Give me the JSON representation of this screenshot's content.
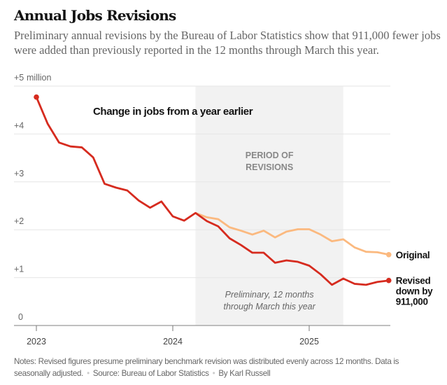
{
  "header": {
    "title": "Annual Jobs Revisions",
    "subtitle": "Preliminary annual revisions by the Bureau of Labor Statistics show that 911,000 fewer jobs were added than previously reported in the 12 months through March this year."
  },
  "chart_data": {
    "type": "line",
    "title": "Change in jobs from a year earlier",
    "ylabel": "million",
    "ylim": [
      0,
      5
    ],
    "y_ticks": [
      {
        "v": 5,
        "label": "+5"
      },
      {
        "v": 4,
        "label": "+4"
      },
      {
        "v": 3,
        "label": "+3"
      },
      {
        "v": 2,
        "label": "+2"
      },
      {
        "v": 1,
        "label": "+1"
      },
      {
        "v": 0,
        "label": "0"
      }
    ],
    "y_unit_label": "million",
    "x_ticks": [
      {
        "month_index": 0,
        "label": "2023"
      },
      {
        "month_index": 12,
        "label": "2024"
      },
      {
        "month_index": 24,
        "label": "2025"
      }
    ],
    "x_start": "2023-01",
    "x_end": "2025-08",
    "grid": true,
    "shaded_region": {
      "from_month_index": 14,
      "to_month_index": 27,
      "label_top": [
        "PERIOD OF",
        "REVISIONS"
      ],
      "label_bottom": [
        "Preliminary, 12 months",
        "through March this year"
      ]
    },
    "series": [
      {
        "name": "Original",
        "label_lines": [
          "Original"
        ],
        "color": "#fbb97f",
        "start_index": 14,
        "values": [
          2.35,
          2.26,
          2.22,
          2.05,
          1.98,
          1.9,
          1.98,
          1.84,
          1.96,
          2.01,
          2.01,
          1.9,
          1.76,
          1.8,
          1.63,
          1.54,
          1.53,
          1.48
        ]
      },
      {
        "name": "Revised",
        "label_lines": [
          "Revised",
          "down by",
          "911,000"
        ],
        "color": "#d62b1f",
        "start_index": 0,
        "values": [
          4.77,
          4.21,
          3.82,
          3.74,
          3.72,
          3.51,
          2.96,
          2.88,
          2.82,
          2.61,
          2.46,
          2.59,
          2.28,
          2.19,
          2.35,
          2.18,
          2.07,
          1.82,
          1.68,
          1.52,
          1.52,
          1.31,
          1.36,
          1.33,
          1.25,
          1.07,
          0.85,
          0.98,
          0.87,
          0.85,
          0.91,
          0.94
        ]
      }
    ]
  },
  "footer": {
    "notes": "Notes: Revised figures presume preliminary benchmark revision was distributed evenly across 12 months. Data is seasonally adjusted.",
    "source": "Source: Bureau of Labor Statistics",
    "byline": "By Karl Russell"
  }
}
